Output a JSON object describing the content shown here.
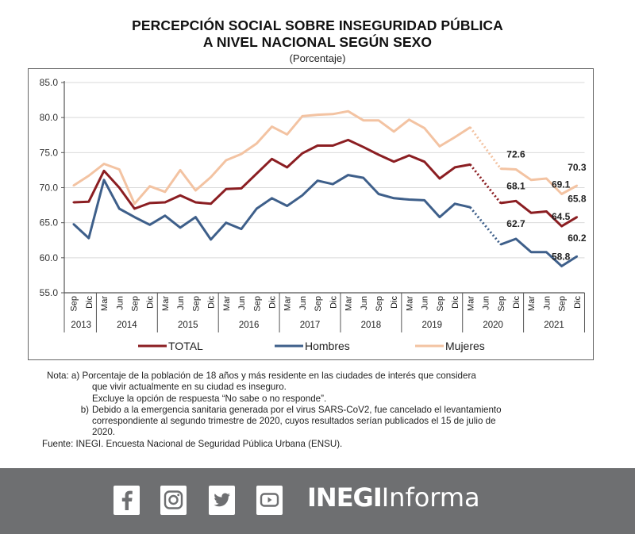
{
  "chart_data": {
    "type": "line",
    "title": "PERCEPCIÓN SOCIAL SOBRE INSEGURIDAD PÚBLICA",
    "title_line2": "A NIVEL NACIONAL SEGÚN SEXO",
    "subtitle": "(Porcentaje)",
    "ylim": [
      55.0,
      85.0
    ],
    "yticks": [
      "85.0",
      "80.0",
      "75.0",
      "70.0",
      "65.0",
      "60.0",
      "55.0"
    ],
    "ytick_values": [
      85,
      80,
      75,
      70,
      65,
      60,
      55
    ],
    "grid": true,
    "legend_position": "bottom",
    "years": [
      {
        "label": "2013",
        "quarters": [
          "Sep",
          "Dic"
        ]
      },
      {
        "label": "2014",
        "quarters": [
          "Mar",
          "Jun",
          "Sep",
          "Dic"
        ]
      },
      {
        "label": "2015",
        "quarters": [
          "Mar",
          "Jun",
          "Sep",
          "Dic"
        ]
      },
      {
        "label": "2016",
        "quarters": [
          "Mar",
          "Jun",
          "Sep",
          "Dic"
        ]
      },
      {
        "label": "2017",
        "quarters": [
          "Mar",
          "Jun",
          "Sep",
          "Dic"
        ]
      },
      {
        "label": "2018",
        "quarters": [
          "Mar",
          "Jun",
          "Sep",
          "Dic"
        ]
      },
      {
        "label": "2019",
        "quarters": [
          "Mar",
          "Jun",
          "Sep",
          "Dic"
        ]
      },
      {
        "label": "2020",
        "quarters": [
          "Mar",
          "Jun",
          "Sep",
          "Dic"
        ]
      },
      {
        "label": "2021",
        "quarters": [
          "Mar",
          "Jun",
          "Sep",
          "Dic"
        ]
      }
    ],
    "gap_index": 27,
    "series": [
      {
        "name": "TOTAL",
        "color": "#8b1e22",
        "values": [
          67.9,
          68.0,
          72.4,
          70.0,
          67.0,
          67.8,
          67.9,
          68.9,
          67.9,
          67.7,
          69.8,
          69.9,
          72.0,
          74.1,
          72.9,
          74.9,
          76.0,
          76.0,
          76.8,
          75.8,
          74.7,
          73.7,
          74.6,
          73.7,
          71.3,
          72.9,
          73.3,
          null,
          67.8,
          68.1,
          66.4,
          66.6,
          64.5,
          65.8
        ],
        "labels": [
          {
            "index": 29,
            "text": "68.1"
          },
          {
            "index": 32,
            "text": "64.5"
          },
          {
            "index": 33,
            "text": "65.8"
          }
        ]
      },
      {
        "name": "Hombres",
        "color": "#3e5f8a",
        "values": [
          64.8,
          62.8,
          71.1,
          67.0,
          65.8,
          64.7,
          66.0,
          64.3,
          65.8,
          62.6,
          65.0,
          64.1,
          67.0,
          68.5,
          67.4,
          68.9,
          71.0,
          70.5,
          71.8,
          71.4,
          69.1,
          68.5,
          68.3,
          68.2,
          65.8,
          67.7,
          67.2,
          null,
          61.9,
          62.7,
          60.8,
          60.8,
          58.8,
          60.2
        ],
        "labels": [
          {
            "index": 29,
            "text": "62.7"
          },
          {
            "index": 32,
            "text": "58.8"
          },
          {
            "index": 33,
            "text": "60.2"
          }
        ]
      },
      {
        "name": "Mujeres",
        "color": "#f3c3a2",
        "values": [
          70.3,
          71.7,
          73.4,
          72.6,
          67.7,
          70.2,
          69.4,
          72.5,
          69.6,
          71.5,
          73.9,
          74.8,
          76.3,
          78.7,
          77.6,
          80.2,
          80.4,
          80.5,
          80.9,
          79.6,
          79.6,
          78.0,
          79.7,
          78.5,
          75.9,
          77.2,
          78.6,
          null,
          72.7,
          72.6,
          71.1,
          71.3,
          69.1,
          70.3
        ],
        "labels": [
          {
            "index": 29,
            "text": "72.6"
          },
          {
            "index": 32,
            "text": "69.1"
          },
          {
            "index": 33,
            "text": "70.3"
          }
        ]
      }
    ]
  },
  "notes": {
    "a_prefix": "Nota:  a)",
    "a_line1": "Porcentaje de la población de 18 años y más residente en las ciudades de interés que considera",
    "a_line2": "que vivir actualmente en su ciudad es inseguro.",
    "a_line3": "Excluye la opción de respuesta “No sabe o no responde”.",
    "b_prefix": "b)",
    "b_line1": "Debido a la emergencia sanitaria generada por el virus SARS-CoV2, fue cancelado el levantamiento",
    "b_line2": "correspondiente al segundo trimestre de 2020, cuyos resultados serían publicados el 15 de julio de",
    "b_line3": "2020.",
    "source": "Fuente: INEGI. Encuesta Nacional de Seguridad Pública Urbana (ENSU)."
  },
  "footer": {
    "brand_bold": "INEGI",
    "brand_light": "Informa",
    "social": [
      "facebook-icon",
      "instagram-icon",
      "twitter-icon",
      "youtube-icon"
    ],
    "background": "#6e6f71"
  }
}
